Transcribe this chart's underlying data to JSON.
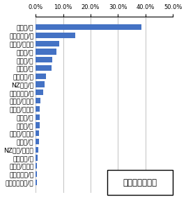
{
  "categories": [
    "米ドル/円",
    "トルコリラ/円",
    "ユーロ/米ドル",
    "豪ドル/円",
    "ポンド/円",
    "ユーロ/円",
    "メキシコ/円",
    "NZドル/円",
    "南アランド/円",
    "豪ドル/米ドル",
    "ポンド/米ドル",
    "カナダ/円",
    "スイス/円",
    "米ドル/スイス",
    "人民元/円",
    "NZドル/米ドル",
    "香港ドル/円",
    "ユーロ/豪ドル",
    "ノルウェー/円",
    "スウェーデン/円"
  ],
  "values": [
    38.5,
    14.5,
    8.5,
    7.5,
    6.0,
    5.8,
    3.8,
    3.2,
    2.8,
    1.8,
    1.6,
    1.5,
    1.4,
    1.3,
    1.2,
    1.0,
    0.8,
    0.6,
    0.5,
    0.4
  ],
  "bar_color": "#4472C4",
  "background_color": "#FFFFFF",
  "xlim": [
    0,
    50
  ],
  "xticks": [
    0,
    10,
    20,
    30,
    40,
    50
  ],
  "xtick_labels": [
    "0.0%",
    "10.0%",
    "20.0%",
    "30.0%",
    "40.0%",
    "50.0%"
  ],
  "legend_text": "買いランキング",
  "legend_fontsize": 8.5,
  "tick_fontsize": 6,
  "label_fontsize": 6.5
}
